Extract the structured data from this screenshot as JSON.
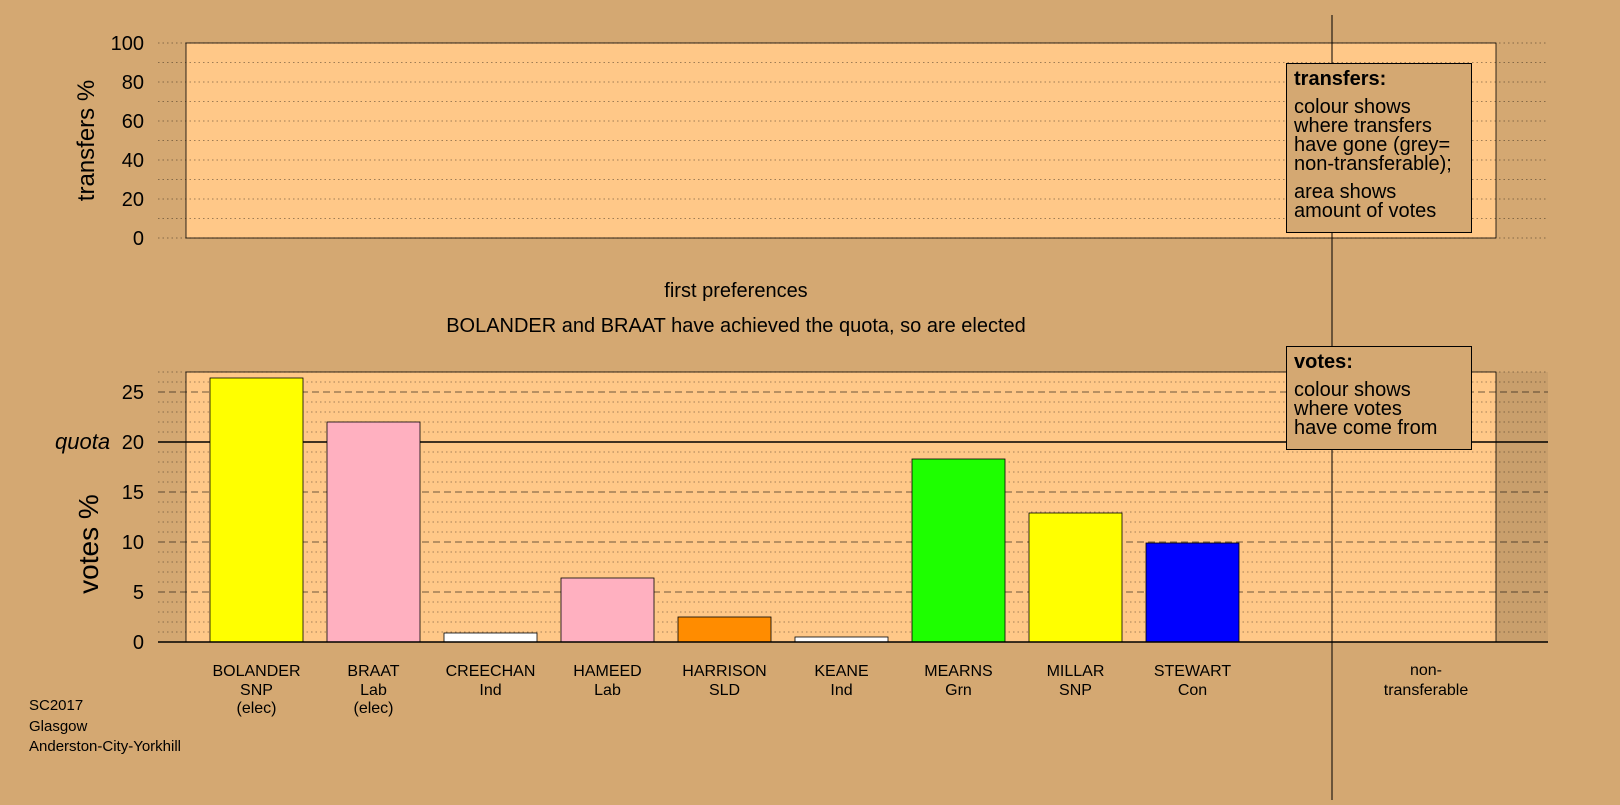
{
  "chart_data": [
    {
      "type": "bar",
      "panel": "transfers",
      "ylabel": "transfers %",
      "ylim": [
        0,
        100
      ],
      "yticks": [
        0,
        20,
        40,
        60,
        80,
        100
      ],
      "grid": "dotted",
      "values": [],
      "legend": {
        "title": "transfers:",
        "paragraphs": [
          "colour shows where transfers have gone (grey= non-transferable);",
          "area shows amount of votes"
        ],
        "lines": [
          [
            "colour shows",
            "where transfers",
            "have gone (grey=",
            "non-transferable);"
          ],
          [
            "area shows",
            "amount of votes"
          ]
        ]
      }
    },
    {
      "type": "bar",
      "panel": "votes",
      "title": "first preferences",
      "subtitle": "BOLANDER and BRAAT have achieved the quota, so are elected",
      "ylabel": "votes %",
      "ylim": [
        0,
        27
      ],
      "yticks": [
        0,
        5,
        10,
        15,
        20,
        25
      ],
      "quota": 20,
      "quota_label": "quota",
      "grid": "dotted",
      "categories": [
        {
          "name": "BOLANDER",
          "party": "SNP",
          "note": "(elec)",
          "value": 26.4,
          "color": "#ffff00"
        },
        {
          "name": "BRAAT",
          "party": "Lab",
          "note": "(elec)",
          "value": 22.0,
          "color": "#ffb0c0"
        },
        {
          "name": "CREECHAN",
          "party": "Ind",
          "note": "",
          "value": 0.9,
          "color": "#ffffff"
        },
        {
          "name": "HAMEED",
          "party": "Lab",
          "note": "",
          "value": 6.4,
          "color": "#ffb0c0"
        },
        {
          "name": "HARRISON",
          "party": "SLD",
          "note": "",
          "value": 2.5,
          "color": "#ff8c00"
        },
        {
          "name": "KEANE",
          "party": "Ind",
          "note": "",
          "value": 0.5,
          "color": "#ffffff"
        },
        {
          "name": "MEARNS",
          "party": "Grn",
          "note": "",
          "value": 18.3,
          "color": "#1eff00"
        },
        {
          "name": "MILLAR",
          "party": "SNP",
          "note": "",
          "value": 12.9,
          "color": "#ffff00"
        },
        {
          "name": "STEWART",
          "party": "Con",
          "note": "",
          "value": 9.9,
          "color": "#0000ff"
        }
      ],
      "extra_category": [
        "non-",
        "transferable"
      ],
      "legend": {
        "title": "votes:",
        "paragraphs": [
          "colour shows where votes have come from"
        ],
        "lines": [
          [
            "colour shows",
            "where votes",
            "have come from"
          ]
        ]
      }
    }
  ],
  "footer": {
    "line1": "SC2017",
    "line2": "Glasgow",
    "line3": "Anderston-City-Yorkhill"
  },
  "colors": {
    "background": "#d4a872",
    "plot_area": "#ffc888",
    "grid": "#000000"
  }
}
